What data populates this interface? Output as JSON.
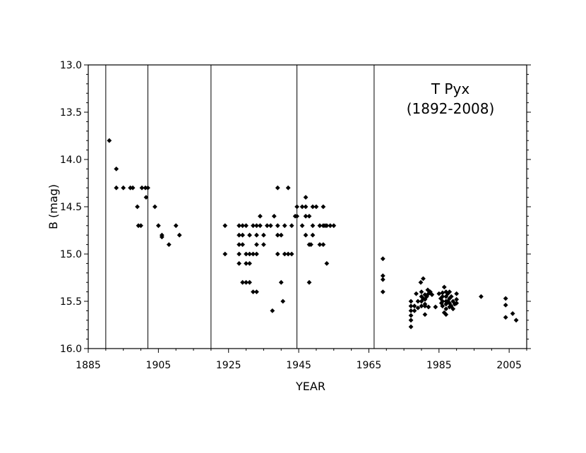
{
  "chart_data": {
    "type": "scatter",
    "title": "T Pyx",
    "subtitle": "(1892-2008)",
    "xlabel": "YEAR",
    "ylabel": "B (mag)",
    "xlim": [
      1885,
      2010
    ],
    "ylim": [
      13.0,
      16.0
    ],
    "y_inverted": true,
    "grid": false,
    "marker": "diamond",
    "color": "#000000",
    "x_ticks": [
      "1885",
      "1905",
      "1925",
      "1945",
      "1965",
      "1985",
      "2005"
    ],
    "y_ticks": [
      "13.0",
      "13.5",
      "14.0",
      "14.5",
      "15.0",
      "15.5",
      "16.0"
    ],
    "vertical_lines": [
      1890,
      1902,
      1920,
      1944.5,
      1966.5
    ],
    "points": [
      [
        1891,
        13.8
      ],
      [
        1893,
        14.1
      ],
      [
        1893,
        14.3
      ],
      [
        1895,
        14.3
      ],
      [
        1897,
        14.3
      ],
      [
        1897.7,
        14.3
      ],
      [
        1899,
        14.5
      ],
      [
        1899.3,
        14.7
      ],
      [
        1900,
        14.7
      ],
      [
        1900.3,
        14.3
      ],
      [
        1901.3,
        14.3
      ],
      [
        1902,
        14.3
      ],
      [
        1901.5,
        14.4
      ],
      [
        1904,
        14.5
      ],
      [
        1905,
        14.7
      ],
      [
        1906,
        14.8
      ],
      [
        1906,
        14.82
      ],
      [
        1908,
        14.9
      ],
      [
        1910,
        14.7
      ],
      [
        1911,
        14.8
      ],
      [
        1924,
        14.7
      ],
      [
        1924,
        15.0
      ],
      [
        1928,
        14.7
      ],
      [
        1928,
        14.8
      ],
      [
        1928,
        14.9
      ],
      [
        1928,
        15.0
      ],
      [
        1928,
        15.1
      ],
      [
        1929,
        14.7
      ],
      [
        1929,
        14.8
      ],
      [
        1929,
        14.9
      ],
      [
        1929,
        15.3
      ],
      [
        1930,
        14.7
      ],
      [
        1930,
        15.0
      ],
      [
        1930,
        15.1
      ],
      [
        1930,
        15.3
      ],
      [
        1931,
        14.8
      ],
      [
        1931,
        15.0
      ],
      [
        1931,
        15.1
      ],
      [
        1931,
        15.3
      ],
      [
        1932,
        14.7
      ],
      [
        1932,
        15.0
      ],
      [
        1932,
        15.4
      ],
      [
        1933,
        14.7
      ],
      [
        1933,
        14.8
      ],
      [
        1933,
        14.9
      ],
      [
        1933,
        15.0
      ],
      [
        1933,
        15.4
      ],
      [
        1934,
        14.7
      ],
      [
        1934,
        14.6
      ],
      [
        1935,
        14.8
      ],
      [
        1935,
        14.9
      ],
      [
        1936,
        14.7
      ],
      [
        1937,
        14.7
      ],
      [
        1938,
        14.6
      ],
      [
        1937.5,
        15.6
      ],
      [
        1939,
        14.7
      ],
      [
        1939,
        14.8
      ],
      [
        1939,
        14.3
      ],
      [
        1939,
        15.0
      ],
      [
        1940,
        14.8
      ],
      [
        1940,
        15.3
      ],
      [
        1940.5,
        15.5
      ],
      [
        1941,
        14.7
      ],
      [
        1941,
        15.0
      ],
      [
        1942,
        14.3
      ],
      [
        1942,
        15.0
      ],
      [
        1943,
        14.7
      ],
      [
        1943,
        15.0
      ],
      [
        1944,
        14.6
      ],
      [
        1944.5,
        14.6
      ],
      [
        1944.5,
        14.5
      ],
      [
        1946,
        14.5
      ],
      [
        1946,
        14.7
      ],
      [
        1947,
        14.4
      ],
      [
        1947,
        14.5
      ],
      [
        1947,
        14.6
      ],
      [
        1947,
        14.8
      ],
      [
        1948,
        14.6
      ],
      [
        1948,
        14.9
      ],
      [
        1948,
        15.3
      ],
      [
        1948.5,
        14.9
      ],
      [
        1949,
        14.5
      ],
      [
        1949,
        14.7
      ],
      [
        1949,
        14.8
      ],
      [
        1950,
        14.5
      ],
      [
        1951,
        14.7
      ],
      [
        1951,
        14.9
      ],
      [
        1952,
        14.5
      ],
      [
        1952,
        14.7
      ],
      [
        1952,
        14.9
      ],
      [
        1952.5,
        14.7
      ],
      [
        1953,
        15.1
      ],
      [
        1953,
        14.7
      ],
      [
        1954,
        14.7
      ],
      [
        1955,
        14.7
      ],
      [
        1969,
        15.05
      ],
      [
        1969,
        15.23
      ],
      [
        1969,
        15.27
      ],
      [
        1969,
        15.4
      ],
      [
        1977,
        15.5
      ],
      [
        1977,
        15.55
      ],
      [
        1977,
        15.6
      ],
      [
        1977,
        15.65
      ],
      [
        1977,
        15.7
      ],
      [
        1977,
        15.77
      ],
      [
        1978,
        15.55
      ],
      [
        1978,
        15.6
      ],
      [
        1978.5,
        15.42
      ],
      [
        1979,
        15.5
      ],
      [
        1979,
        15.57
      ],
      [
        1979.8,
        15.3
      ],
      [
        1980,
        15.4
      ],
      [
        1980,
        15.45
      ],
      [
        1980,
        15.5
      ],
      [
        1980,
        15.55
      ],
      [
        1980.5,
        15.26
      ],
      [
        1980.5,
        15.47
      ],
      [
        1981,
        15.43
      ],
      [
        1981,
        15.48
      ],
      [
        1981,
        15.53
      ],
      [
        1981,
        15.55
      ],
      [
        1981,
        15.64
      ],
      [
        1981.5,
        15.45
      ],
      [
        1981.8,
        15.38
      ],
      [
        1982,
        15.42
      ],
      [
        1982,
        15.56
      ],
      [
        1982.5,
        15.4
      ],
      [
        1983,
        15.43
      ],
      [
        1984,
        15.56
      ],
      [
        1985,
        15.42
      ],
      [
        1985.5,
        15.47
      ],
      [
        1985.7,
        15.52
      ],
      [
        1986,
        15.41
      ],
      [
        1986,
        15.45
      ],
      [
        1986,
        15.5
      ],
      [
        1986,
        15.55
      ],
      [
        1986.5,
        15.35
      ],
      [
        1986.5,
        15.62
      ],
      [
        1987,
        15.4
      ],
      [
        1987,
        15.45
      ],
      [
        1987,
        15.5
      ],
      [
        1987,
        15.53
      ],
      [
        1987,
        15.58
      ],
      [
        1987,
        15.64
      ],
      [
        1987.5,
        15.42
      ],
      [
        1987.5,
        15.5
      ],
      [
        1988,
        15.4
      ],
      [
        1988,
        15.47
      ],
      [
        1988,
        15.52
      ],
      [
        1988,
        15.56
      ],
      [
        1988.5,
        15.45
      ],
      [
        1988.5,
        15.55
      ],
      [
        1989,
        15.5
      ],
      [
        1989,
        15.58
      ],
      [
        1989.5,
        15.53
      ],
      [
        1990,
        15.42
      ],
      [
        1990,
        15.48
      ],
      [
        1990,
        15.52
      ],
      [
        1997,
        15.45
      ],
      [
        2004,
        15.47
      ],
      [
        2004,
        15.54
      ],
      [
        2004,
        15.67
      ],
      [
        2006,
        15.63
      ],
      [
        2007,
        15.7
      ]
    ]
  }
}
